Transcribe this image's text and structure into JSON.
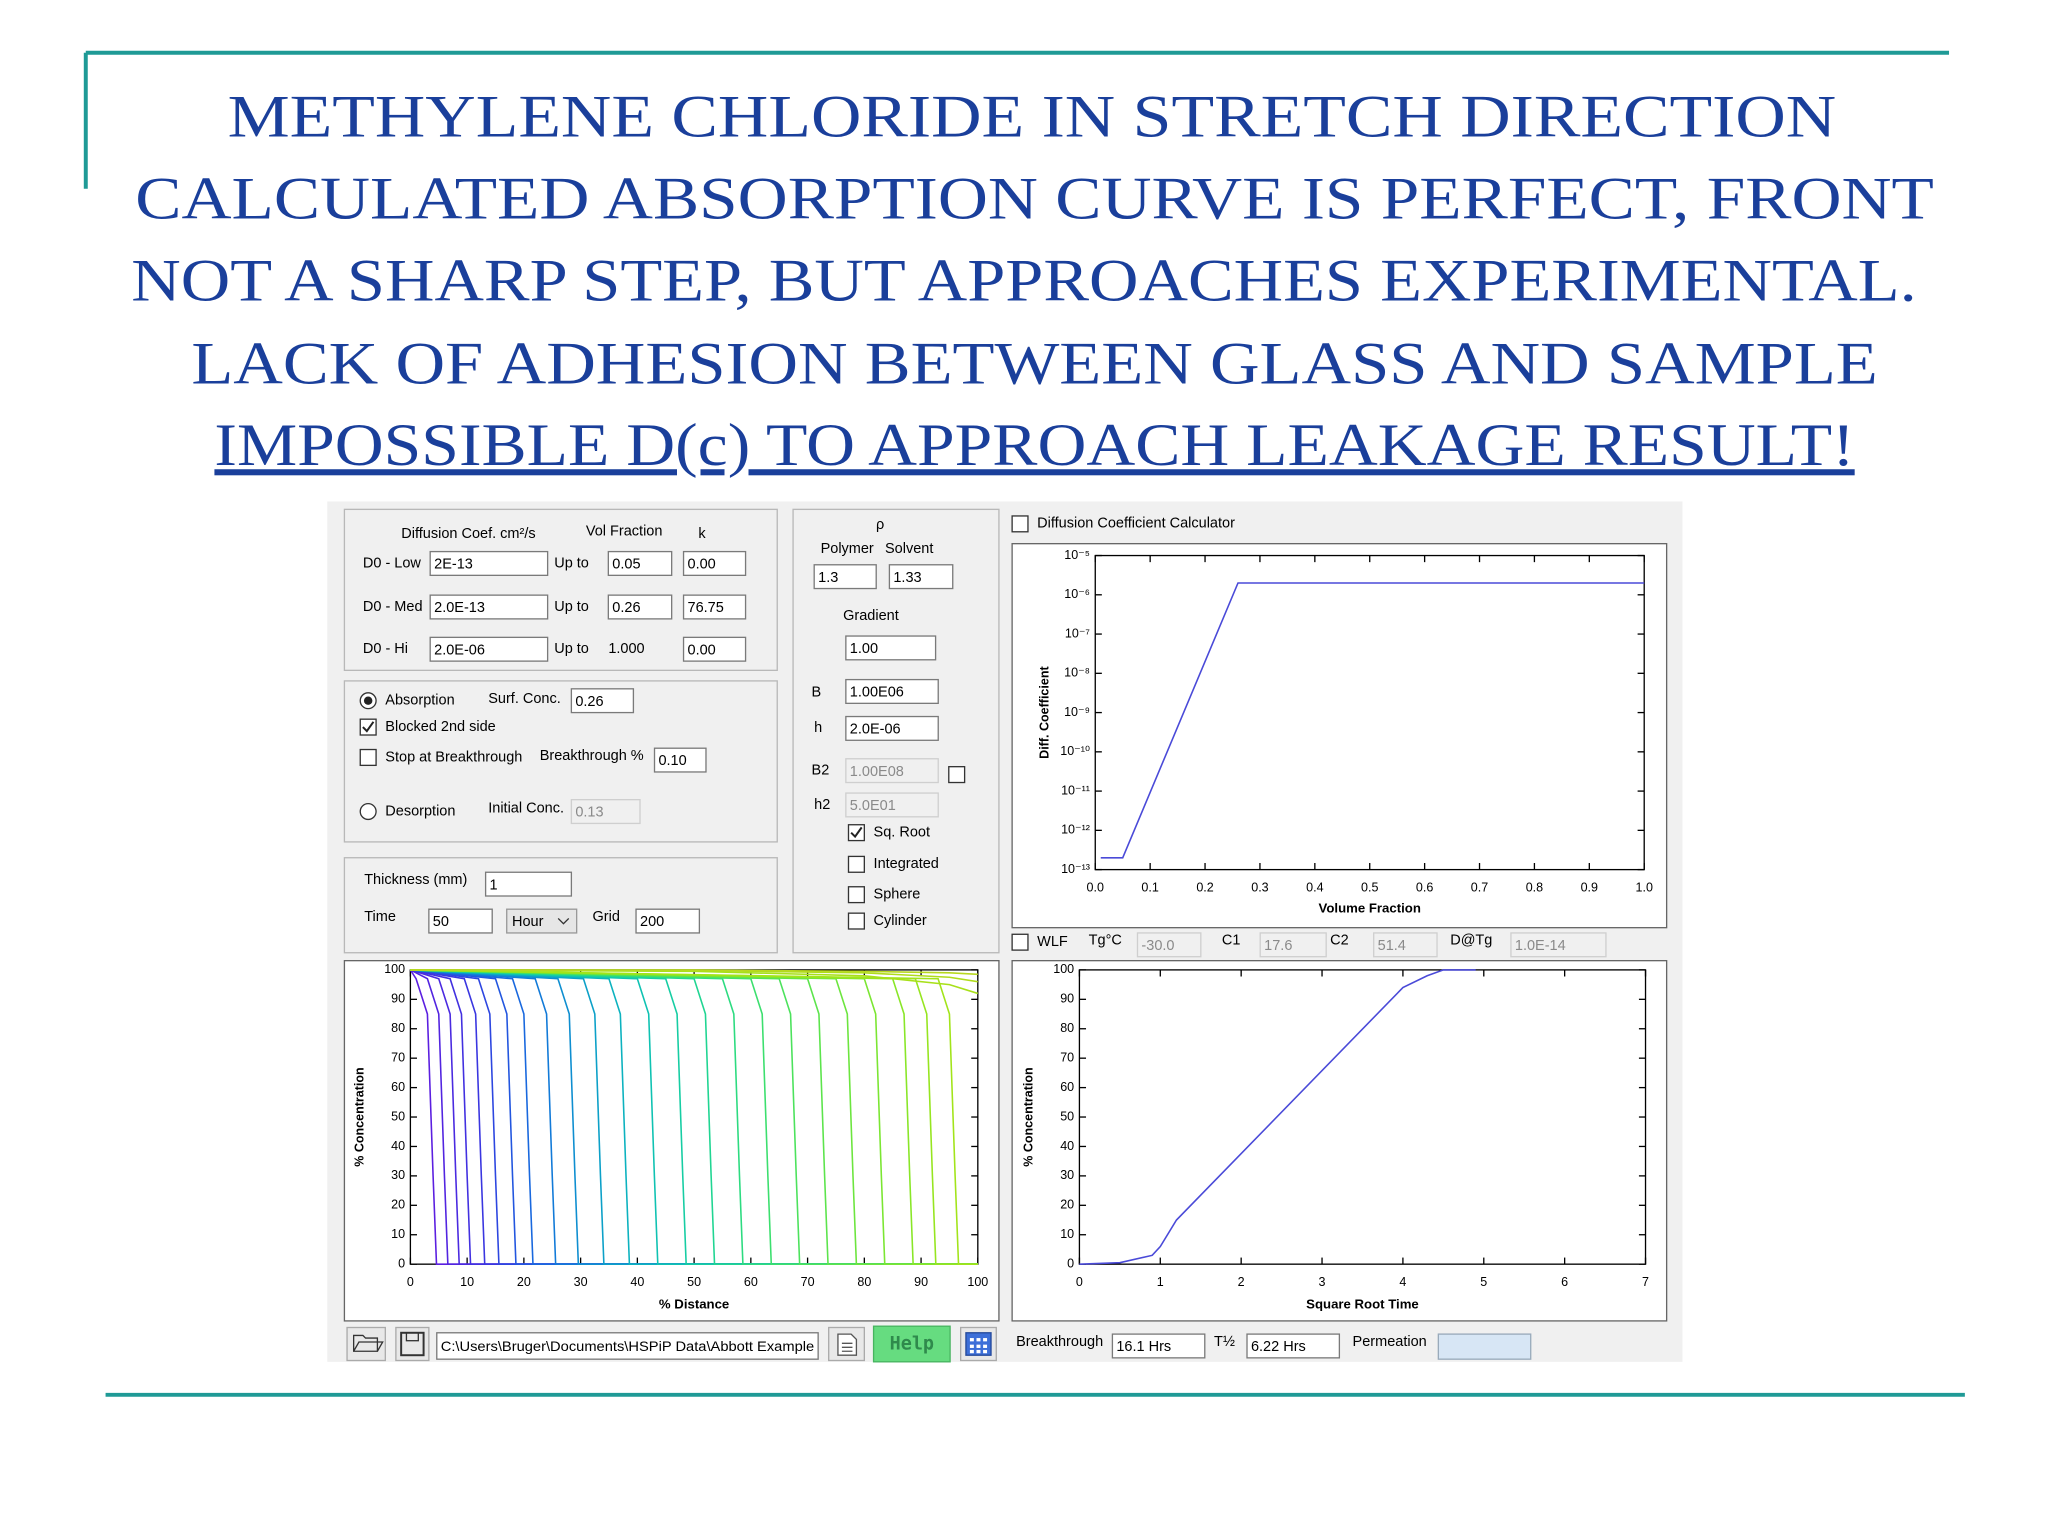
{
  "slide": {
    "title_lines": [
      "METHYLENE CHLORIDE IN STRETCH DIRECTION",
      "CALCULATED ABSORPTION CURVE  IS PERFECT, FRONT",
      "NOT A SHARP STEP, BUT APPROACHES EXPERIMENTAL.",
      "LACK OF ADHESION BETWEEN GLASS AND SAMPLE",
      "IMPOSSIBLE D(c) TO APPROACH LEAKAGE RESULT!"
    ]
  },
  "app": {
    "diffusion": {
      "coef_heading": "Diffusion Coef. cm²/s",
      "vol_heading": "Vol Fraction",
      "k_heading": "k",
      "rows": [
        {
          "label": "D0 - Low",
          "d0": "2E-13",
          "upto": "Up to",
          "vol": "0.05",
          "k": "0.00"
        },
        {
          "label": "D0 - Med",
          "d0": "2.0E-13",
          "upto": "Up to",
          "vol": "0.26",
          "k": "76.75"
        },
        {
          "label": "D0 - Hi",
          "d0": "2.0E-06",
          "upto": "Up to",
          "vol": "1.000",
          "k": "0.00"
        }
      ]
    },
    "mode": {
      "absorption": "Absorption",
      "surf_conc_label": "Surf. Conc.",
      "surf_conc": "0.26",
      "blocked": "Blocked 2nd side",
      "stop": "Stop at Breakthrough",
      "breakthrough_label": "Breakthrough %",
      "breakthrough": "0.10",
      "desorption": "Desorption",
      "initial_conc_label": "Initial Conc.",
      "initial_conc": "0.13"
    },
    "geometry": {
      "thickness_label": "Thickness (mm)",
      "thickness": "1",
      "time_label": "Time",
      "time": "50",
      "time_unit": "Hour",
      "grid_label": "Grid",
      "grid": "200"
    },
    "density": {
      "rho": "ρ",
      "polymer_label": "Polymer",
      "solvent_label": "Solvent",
      "polymer": "1.3",
      "solvent": "1.33",
      "gradient_label": "Gradient",
      "gradient": "1.00",
      "b_label": "B",
      "b": "1.00E06",
      "h_label": "h",
      "h": "2.0E-06",
      "b2_label": "B2",
      "b2": "1.00E08",
      "h2_label": "h2",
      "h2": "5.0E01",
      "sq_root": "Sq. Root",
      "integrated": "Integrated",
      "sphere": "Sphere",
      "cylinder": "Cylinder"
    },
    "calculator": "Diffusion Coefficient Calculator",
    "wlf": {
      "label": "WLF",
      "tg_label": "Tg°C",
      "tg": "-30.0",
      "c1_label": "C1",
      "c1": "17.6",
      "c2_label": "C2",
      "c2": "51.4",
      "dtg_label": "D@Tg",
      "dtg": "1.0E-14"
    },
    "status": {
      "path": "C:\\Users\\Bruger\\Documents\\HSPiP Data\\Abbott Example",
      "help": "Help",
      "breakthrough_label": "Breakthrough",
      "breakthrough": "16.1 Hrs",
      "half_label": "T½",
      "half": "6.22 Hrs",
      "permeation_label": "Permeation"
    }
  },
  "charts": [
    {
      "type": "line",
      "x_label": "Volume Fraction",
      "y_label": "Diff. Coefficient",
      "log_y": true,
      "xlim": [
        0,
        1
      ],
      "ylim": [
        1e-13,
        1e-05
      ],
      "xticks": [
        {
          "value": 0,
          "label": "0.0"
        },
        0.1,
        0.2,
        0.3,
        0.4,
        0.5,
        0.6,
        0.7,
        0.8,
        0.9,
        {
          "value": 1,
          "label": "1.0"
        }
      ],
      "yticks": [
        {
          "value": 1e-13,
          "label": "10⁻¹³"
        },
        {
          "value": 1e-12,
          "label": "10⁻¹²"
        },
        {
          "value": 1e-11,
          "label": "10⁻¹¹"
        },
        {
          "value": 1e-10,
          "label": "10⁻¹⁰"
        },
        {
          "value": 1e-09,
          "label": "10⁻⁹"
        },
        {
          "value": 1e-08,
          "label": "10⁻⁸"
        },
        {
          "value": 1e-07,
          "label": "10⁻⁷"
        },
        {
          "value": 1e-06,
          "label": "10⁻⁶"
        },
        {
          "value": 1e-05,
          "label": "10⁻⁵"
        }
      ],
      "series": [
        {
          "color": "#4a4ad8",
          "x": [
            0.01,
            0.05,
            0.26,
            1
          ],
          "values": [
            2e-13,
            2e-13,
            2e-06,
            2e-06
          ]
        }
      ]
    },
    {
      "type": "line",
      "x_label": "% Distance",
      "y_label": "% Concentration",
      "log_y": false,
      "xlim": [
        0,
        100
      ],
      "ylim": [
        0,
        100
      ],
      "xticks": [
        0,
        10,
        20,
        30,
        40,
        50,
        60,
        70,
        80,
        90,
        100
      ],
      "yticks": [
        0,
        10,
        20,
        30,
        40,
        50,
        60,
        70,
        80,
        90,
        100
      ],
      "series": [
        {
          "color": "#5b1fe0",
          "x": [
            0,
            1,
            3,
            4,
            4.6,
            100
          ],
          "values": [
            100,
            97,
            85,
            30,
            0,
            0
          ]
        },
        {
          "color": "#5224e0",
          "x": [
            0,
            3,
            5,
            6,
            6.6,
            100
          ],
          "values": [
            100,
            97,
            85,
            30,
            0,
            0
          ]
        },
        {
          "color": "#4a2ae0",
          "x": [
            0,
            5,
            7,
            8,
            8.6,
            100
          ],
          "values": [
            100,
            97,
            85,
            30,
            0,
            0
          ]
        },
        {
          "color": "#4230e0",
          "x": [
            0,
            7,
            9,
            10,
            10.6,
            100
          ],
          "values": [
            100,
            97,
            85,
            30,
            0,
            0
          ]
        },
        {
          "color": "#3a36e0",
          "x": [
            0,
            9.5,
            11.5,
            12.5,
            13.1,
            100
          ],
          "values": [
            100,
            97,
            85,
            30,
            0,
            0
          ]
        },
        {
          "color": "#2d46e0",
          "x": [
            0,
            12,
            14,
            15,
            15.6,
            100
          ],
          "values": [
            100,
            97,
            85,
            30,
            0,
            0
          ]
        },
        {
          "color": "#2256df",
          "x": [
            0,
            15,
            17,
            18,
            18.6,
            100
          ],
          "values": [
            100,
            97,
            85,
            30,
            0,
            0
          ]
        },
        {
          "color": "#1968de",
          "x": [
            0,
            18,
            20,
            21,
            21.6,
            100
          ],
          "values": [
            100,
            97,
            85,
            30,
            0,
            0
          ]
        },
        {
          "color": "#127ad8",
          "x": [
            0,
            22,
            24,
            25,
            25.6,
            100
          ],
          "values": [
            100,
            97,
            85,
            30,
            0,
            0
          ]
        },
        {
          "color": "#0e8ed0",
          "x": [
            0,
            26,
            28,
            29,
            29.6,
            100
          ],
          "values": [
            100,
            97,
            85,
            30,
            0,
            0
          ]
        },
        {
          "color": "#0ca0c8",
          "x": [
            0,
            30.5,
            32.5,
            33.5,
            34.1,
            100
          ],
          "values": [
            100,
            97,
            85,
            30,
            0,
            0
          ]
        },
        {
          "color": "#0cb2bf",
          "x": [
            0,
            35,
            37,
            38,
            38.6,
            100
          ],
          "values": [
            100,
            97,
            85,
            30,
            0,
            0
          ]
        },
        {
          "color": "#0fc2b2",
          "x": [
            0,
            40,
            42,
            43,
            43.6,
            100
          ],
          "values": [
            100,
            97,
            85,
            30,
            0,
            0
          ]
        },
        {
          "color": "#16cda3",
          "x": [
            0,
            45,
            47,
            48,
            48.6,
            100
          ],
          "values": [
            100,
            97,
            85,
            30,
            0,
            0
          ]
        },
        {
          "color": "#20d592",
          "x": [
            0,
            50,
            52,
            53,
            53.6,
            100
          ],
          "values": [
            100,
            97,
            85,
            30,
            0,
            0
          ]
        },
        {
          "color": "#2ddb80",
          "x": [
            0,
            55,
            57,
            58,
            58.6,
            100
          ],
          "values": [
            100,
            97,
            85,
            30,
            0,
            0
          ]
        },
        {
          "color": "#3cdf6e",
          "x": [
            0,
            60,
            62,
            63,
            63.6,
            100
          ],
          "values": [
            100,
            97,
            85,
            30,
            0,
            0
          ]
        },
        {
          "color": "#4ce25c",
          "x": [
            0,
            65,
            67,
            68,
            68.6,
            100
          ],
          "values": [
            100,
            97,
            85,
            30,
            0,
            0
          ]
        },
        {
          "color": "#5ce44c",
          "x": [
            0,
            70,
            72,
            73,
            73.6,
            100
          ],
          "values": [
            100,
            97,
            85,
            30,
            0,
            0
          ]
        },
        {
          "color": "#6ce53e",
          "x": [
            0,
            75,
            77,
            78,
            78.6,
            100
          ],
          "values": [
            100,
            97,
            85,
            30,
            0,
            0
          ]
        },
        {
          "color": "#7be632",
          "x": [
            0,
            80,
            82,
            83,
            83.6,
            100
          ],
          "values": [
            100,
            97,
            85,
            30,
            0,
            0
          ]
        },
        {
          "color": "#89e628",
          "x": [
            0,
            85,
            87,
            88,
            88.6,
            100
          ],
          "values": [
            100,
            97,
            85,
            30,
            0,
            0
          ]
        },
        {
          "color": "#96e520",
          "x": [
            0,
            89,
            91,
            92,
            92.6,
            100
          ],
          "values": [
            100,
            97,
            85,
            30,
            0,
            0
          ]
        },
        {
          "color": "#a2e41a",
          "x": [
            0,
            93,
            95,
            96,
            96.6,
            100
          ],
          "values": [
            100,
            97,
            85,
            30,
            0,
            0
          ]
        },
        {
          "color": "#a8e01a",
          "x": [
            0,
            50,
            80,
            95,
            100
          ],
          "values": [
            100,
            99.5,
            98,
            95,
            92
          ]
        },
        {
          "color": "#b0dc1c",
          "x": [
            0,
            50,
            80,
            95,
            100
          ],
          "values": [
            100,
            99.8,
            99,
            97.5,
            96
          ]
        },
        {
          "color": "#b8d820",
          "x": [
            0,
            50,
            80,
            95,
            100
          ],
          "values": [
            100,
            100,
            99.5,
            99,
            98.5
          ]
        }
      ]
    },
    {
      "type": "line",
      "x_label": "Square Root Time",
      "y_label": "% Concentration",
      "log_y": false,
      "xlim": [
        0,
        7
      ],
      "ylim": [
        0,
        100
      ],
      "xticks": [
        0,
        1,
        2,
        3,
        4,
        5,
        6,
        7
      ],
      "yticks": [
        0,
        10,
        20,
        30,
        40,
        50,
        60,
        70,
        80,
        90,
        100
      ],
      "series": [
        {
          "color": "#4a4ad8",
          "x": [
            0,
            0.5,
            0.9,
            1.0,
            1.2,
            4.0,
            4.3,
            4.5,
            4.9
          ],
          "values": [
            0,
            0.5,
            3,
            6,
            15,
            94,
            98,
            100,
            100
          ]
        }
      ]
    }
  ]
}
